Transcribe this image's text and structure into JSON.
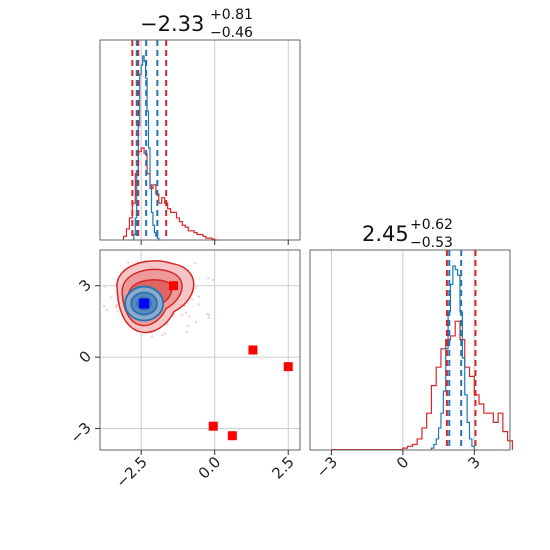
{
  "chart_data": {
    "type": "corner",
    "panels": [
      {
        "id": "hist-x",
        "type": "histogram",
        "title": {
          "value": "−2.33",
          "upper": "+0.81",
          "lower": "−0.46"
        },
        "xlim": [
          -3.9,
          2.9
        ],
        "xticks": [
          -2.5,
          0.0,
          2.5
        ],
        "quantile_lines_red": [
          -2.8,
          -2.6,
          -1.65
        ],
        "quantile_lines_blue": [
          -2.65,
          -2.33,
          -1.95
        ],
        "series": [
          {
            "color": "#d62728",
            "bins": [
              -3.1,
              -3.0,
              -2.9,
              -2.8,
              -2.7,
              -2.6,
              -2.5,
              -2.4,
              -2.3,
              -2.2,
              -2.1,
              -2.0,
              -1.9,
              -1.8,
              -1.7,
              -1.6,
              -1.5,
              -1.4,
              -1.3,
              -1.2,
              -1.1,
              -1.0,
              -0.9,
              -0.8,
              -0.7,
              -0.6,
              -0.5,
              -0.4,
              -0.3,
              -0.2,
              -0.1,
              0.0
            ],
            "values": [
              0.02,
              0.06,
              0.12,
              0.2,
              0.36,
              0.48,
              0.5,
              0.47,
              0.36,
              0.28,
              0.3,
              0.25,
              0.2,
              0.23,
              0.2,
              0.17,
              0.15,
              0.15,
              0.12,
              0.1,
              0.08,
              0.07,
              0.05,
              0.05,
              0.04,
              0.03,
              0.03,
              0.02,
              0.01,
              0.01,
              0.005,
              0.0
            ]
          },
          {
            "color": "#1f77b4",
            "bins": [
              -2.8,
              -2.75,
              -2.7,
              -2.65,
              -2.6,
              -2.55,
              -2.5,
              -2.45,
              -2.4,
              -2.35,
              -2.3,
              -2.25,
              -2.2,
              -2.15,
              -2.1,
              -2.05,
              -2.0,
              -1.95,
              -1.9
            ],
            "values": [
              0.0,
              0.03,
              0.12,
              0.35,
              0.62,
              0.9,
              0.95,
              1.0,
              0.97,
              0.88,
              0.7,
              0.5,
              0.3,
              0.15,
              0.08,
              0.04,
              0.02,
              0.01,
              0.0
            ]
          }
        ]
      },
      {
        "id": "scatter-xy",
        "type": "2d-contour",
        "xlim": [
          -3.9,
          2.9
        ],
        "ylim": [
          -3.9,
          4.5
        ],
        "xticks": [
          -2.5,
          0.0,
          2.5
        ],
        "yticks": [
          -3,
          0,
          3
        ],
        "outliers": [
          {
            "x": -1.4,
            "y": 3.0
          },
          {
            "x": 1.3,
            "y": 0.3
          },
          {
            "x": 2.5,
            "y": -0.4
          },
          {
            "x": -0.05,
            "y": -2.9
          },
          {
            "x": 0.6,
            "y": -3.3
          }
        ],
        "center": {
          "x": -2.4,
          "y": 2.25
        }
      },
      {
        "id": "hist-y",
        "type": "histogram",
        "title": {
          "value": "2.45",
          "upper": "+0.62",
          "lower": "−0.53"
        },
        "xlim": [
          -3.9,
          4.5
        ],
        "xticks": [
          -3,
          0,
          3
        ],
        "quantile_lines_red": [
          1.85,
          3.05
        ],
        "quantile_lines_blue": [
          1.95,
          2.45
        ],
        "series": [
          {
            "color": "#d62728",
            "bins": [
              0.0,
              0.2,
              0.4,
              0.6,
              0.8,
              1.0,
              1.2,
              1.4,
              1.6,
              1.8,
              2.0,
              2.2,
              2.4,
              2.6,
              2.8,
              3.0,
              3.2,
              3.4,
              3.6,
              3.8,
              4.0,
              4.2,
              4.4
            ],
            "values": [
              0.01,
              0.02,
              0.03,
              0.06,
              0.12,
              0.2,
              0.35,
              0.45,
              0.55,
              0.6,
              0.62,
              0.7,
              0.6,
              0.45,
              0.4,
              0.3,
              0.25,
              0.2,
              0.2,
              0.15,
              0.2,
              0.1,
              0.05
            ]
          },
          {
            "color": "#1f77b4",
            "bins": [
              1.2,
              1.3,
              1.4,
              1.5,
              1.6,
              1.7,
              1.8,
              1.9,
              2.0,
              2.1,
              2.2,
              2.3,
              2.4,
              2.5,
              2.6,
              2.7,
              2.8,
              2.9,
              3.0
            ],
            "values": [
              0.01,
              0.03,
              0.06,
              0.12,
              0.2,
              0.32,
              0.55,
              0.75,
              0.9,
              1.0,
              0.98,
              0.95,
              0.75,
              0.5,
              0.3,
              0.15,
              0.06,
              0.02,
              0.0
            ]
          }
        ]
      }
    ]
  }
}
